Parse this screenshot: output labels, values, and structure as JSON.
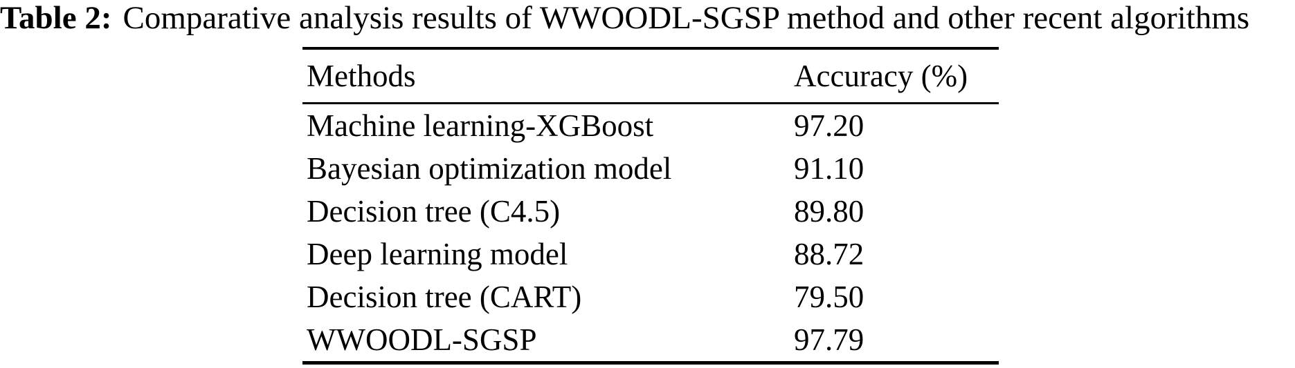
{
  "caption": {
    "label": "Table 2:",
    "text": "Comparative analysis results of WWOODL-SGSP method and other recent algorithms"
  },
  "table": {
    "columns": [
      "Methods",
      "Accuracy (%)"
    ],
    "rows": [
      {
        "method": "Machine learning-XGBoost",
        "accuracy": "97.20"
      },
      {
        "method": "Bayesian optimization model",
        "accuracy": "91.10"
      },
      {
        "method": "Decision tree (C4.5)",
        "accuracy": "89.80"
      },
      {
        "method": "Deep learning model",
        "accuracy": "88.72"
      },
      {
        "method": "Decision tree (CART)",
        "accuracy": "79.50"
      },
      {
        "method": "WWOODL-SGSP",
        "accuracy": "97.79"
      }
    ]
  },
  "chart_data": {
    "type": "table",
    "title": "Table 2: Comparative analysis results of WWOODL-SGSP method and other recent algorithms",
    "categories": [
      "Machine learning-XGBoost",
      "Bayesian optimization model",
      "Decision tree (C4.5)",
      "Deep learning model",
      "Decision tree (CART)",
      "WWOODL-SGSP"
    ],
    "values": [
      97.2,
      91.1,
      89.8,
      88.72,
      79.5,
      97.79
    ],
    "xlabel": "Methods",
    "ylabel": "Accuracy (%)"
  },
  "colors": {
    "background": "#ffffff",
    "text": "#000000",
    "rule": "#000000"
  }
}
